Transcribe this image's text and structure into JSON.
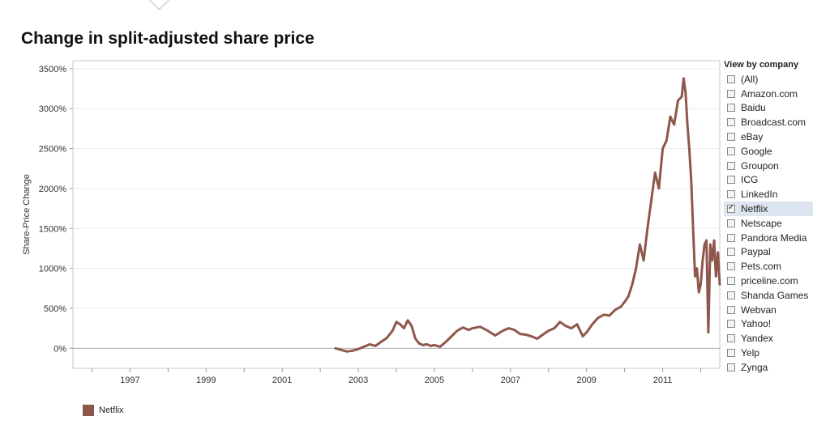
{
  "title": "Change in split-adjusted share price",
  "filter": {
    "title": "View by company",
    "items": [
      {
        "label": "(All)",
        "checked": false
      },
      {
        "label": "Amazon.com",
        "checked": false
      },
      {
        "label": "Baidu",
        "checked": false
      },
      {
        "label": "Broadcast.com",
        "checked": false
      },
      {
        "label": "eBay",
        "checked": false
      },
      {
        "label": "Google",
        "checked": false
      },
      {
        "label": "Groupon",
        "checked": false
      },
      {
        "label": "ICG",
        "checked": false
      },
      {
        "label": "LinkedIn",
        "checked": false
      },
      {
        "label": "Netflix",
        "checked": true
      },
      {
        "label": "Netscape",
        "checked": false
      },
      {
        "label": "Pandora Media",
        "checked": false
      },
      {
        "label": "Paypal",
        "checked": false
      },
      {
        "label": "Pets.com",
        "checked": false
      },
      {
        "label": "priceline.com",
        "checked": false
      },
      {
        "label": "Shanda Games",
        "checked": false
      },
      {
        "label": "Webvan",
        "checked": false
      },
      {
        "label": "Yahoo!",
        "checked": false
      },
      {
        "label": "Yandex",
        "checked": false
      },
      {
        "label": "Yelp",
        "checked": false
      },
      {
        "label": "Zynga",
        "checked": false
      }
    ]
  },
  "legend": {
    "label": "Netflix",
    "color": "#8f574b"
  },
  "chart_data": {
    "type": "line",
    "title": "Change in split-adjusted share price",
    "xlabel": "",
    "ylabel": "Share-Price Change",
    "x_ticks": [
      "1997",
      "1999",
      "2001",
      "2003",
      "2005",
      "2007",
      "2009",
      "2011"
    ],
    "y_ticks": [
      "0%",
      "500%",
      "1000%",
      "1500%",
      "2000%",
      "2500%",
      "3000%",
      "3500%"
    ],
    "xlim": [
      1995.5,
      2012.5
    ],
    "ylim": [
      -250,
      3600
    ],
    "grid": true,
    "series": [
      {
        "name": "Netflix",
        "color": "#8f574b",
        "x": [
          2002.4,
          2002.55,
          2002.7,
          2002.85,
          2003.0,
          2003.15,
          2003.3,
          2003.45,
          2003.6,
          2003.75,
          2003.9,
          2004.0,
          2004.1,
          2004.2,
          2004.3,
          2004.4,
          2004.5,
          2004.6,
          2004.7,
          2004.8,
          2004.9,
          2005.0,
          2005.15,
          2005.3,
          2005.45,
          2005.6,
          2005.75,
          2005.9,
          2006.0,
          2006.2,
          2006.4,
          2006.6,
          2006.8,
          2006.95,
          2007.1,
          2007.25,
          2007.4,
          2007.55,
          2007.7,
          2007.85,
          2008.0,
          2008.15,
          2008.3,
          2008.45,
          2008.6,
          2008.75,
          2008.9,
          2009.0,
          2009.15,
          2009.3,
          2009.45,
          2009.6,
          2009.75,
          2009.9,
          2010.0,
          2010.1,
          2010.2,
          2010.3,
          2010.4,
          2010.5,
          2010.6,
          2010.7,
          2010.8,
          2010.9,
          2011.0,
          2011.1,
          2011.2,
          2011.3,
          2011.4,
          2011.5,
          2011.55,
          2011.6,
          2011.65,
          2011.7,
          2011.75,
          2011.8,
          2011.85,
          2011.9,
          2011.95,
          2012.0,
          2012.05,
          2012.1,
          2012.15,
          2012.2,
          2012.25,
          2012.3,
          2012.35,
          2012.4,
          2012.45,
          2012.5
        ],
        "y": [
          0,
          -20,
          -40,
          -30,
          -10,
          20,
          50,
          30,
          80,
          130,
          220,
          330,
          300,
          250,
          350,
          280,
          120,
          60,
          40,
          50,
          30,
          40,
          20,
          80,
          150,
          220,
          260,
          230,
          250,
          270,
          220,
          160,
          220,
          250,
          230,
          180,
          170,
          150,
          120,
          170,
          220,
          250,
          330,
          280,
          250,
          300,
          150,
          200,
          300,
          380,
          420,
          410,
          480,
          520,
          580,
          650,
          800,
          1000,
          1300,
          1100,
          1500,
          1850,
          2200,
          2000,
          2500,
          2600,
          2900,
          2800,
          3100,
          3150,
          3380,
          3200,
          2800,
          2500,
          2100,
          1500,
          900,
          1000,
          700,
          800,
          1100,
          1300,
          1350,
          200,
          1300,
          1100,
          1350,
          900,
          1200,
          800
        ]
      }
    ]
  }
}
